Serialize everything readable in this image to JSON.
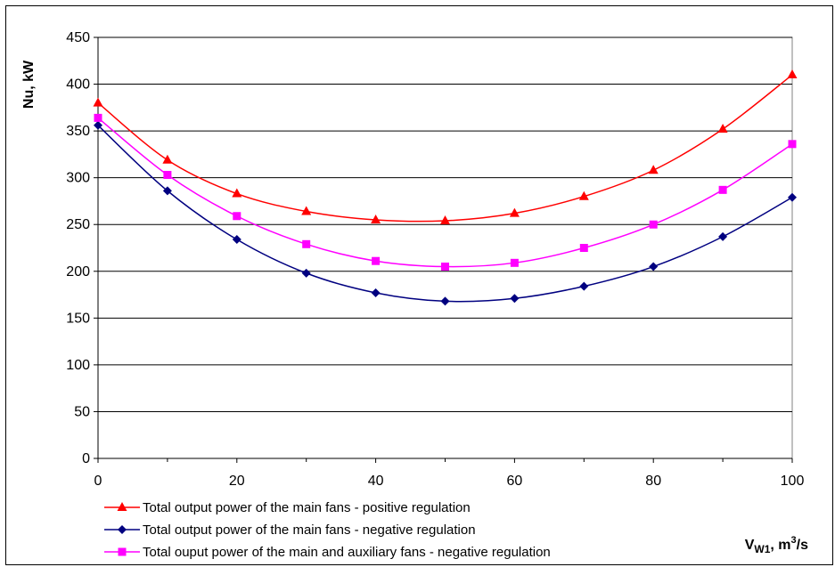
{
  "chart_data": {
    "type": "line",
    "ylabel": "Nu, kW",
    "xlabel": "V",
    "xlabel_sub": "W1",
    "xlabel_rest": ", m",
    "xlabel_sup": "3",
    "xlabel_end": "/s",
    "xlim": [
      0,
      100
    ],
    "ylim": [
      0,
      450
    ],
    "x_ticks": [
      0,
      20,
      40,
      60,
      80,
      100
    ],
    "y_ticks": [
      0,
      50,
      100,
      150,
      200,
      250,
      300,
      350,
      400,
      450
    ],
    "grid": "horizontal",
    "legend_position": "bottom-left",
    "x": [
      0,
      10,
      20,
      30,
      40,
      50,
      60,
      70,
      80,
      90,
      100
    ],
    "series": [
      {
        "name": "Total output power of the main fans - positive regulation",
        "color": "#ff0000",
        "marker": "triangle",
        "values": [
          380,
          319,
          283,
          264,
          255,
          254,
          262,
          280,
          308,
          352,
          410
        ]
      },
      {
        "name": "Total output power of the main fans - negative regulation",
        "color": "#000080",
        "marker": "diamond",
        "values": [
          356,
          286,
          234,
          198,
          177,
          168,
          171,
          184,
          205,
          237,
          279
        ]
      },
      {
        "name": "Total ouput power of the main and auxiliary fans - negative regulation",
        "color": "#ff00ff",
        "marker": "square",
        "values": [
          364,
          303,
          259,
          229,
          211,
          205,
          209,
          225,
          250,
          287,
          336
        ]
      }
    ]
  }
}
